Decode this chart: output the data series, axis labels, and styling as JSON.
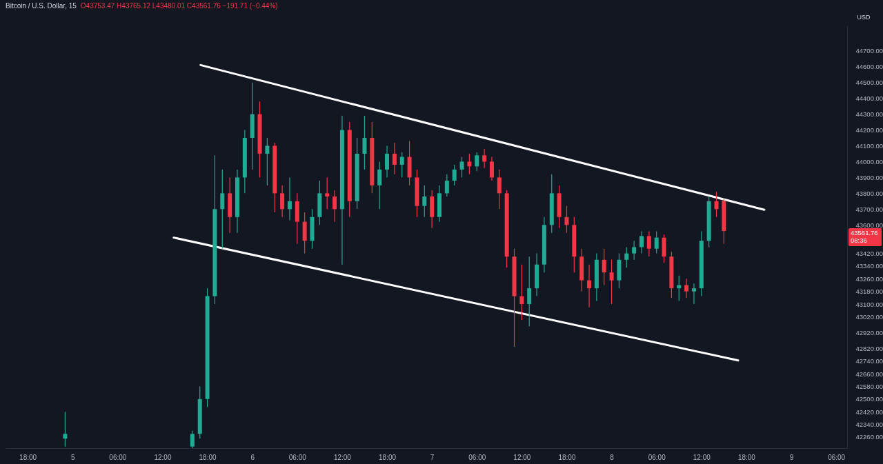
{
  "chart_data": {
    "type": "candlestick",
    "title": "Bitcoin / U.S. Dollar, 15",
    "subtitle": "O43753.47 H43765.12 L43480.01 C43561.76 −191.71 (−0.44%)",
    "ylabel": "USD",
    "annotations": [
      "43561.76",
      "08:36"
    ],
    "xlim": [
      "--12-04T15:30",
      "--12-09T07:00"
    ],
    "xticks": [
      {
        "value": "--12-04T18:00",
        "label": "18:00"
      },
      {
        "value": "--12-05T00:00",
        "label": "5"
      },
      {
        "value": "--12-05T06:00",
        "label": "06:00"
      },
      {
        "value": "--12-05T12:00",
        "label": "12:00"
      },
      {
        "value": "--12-05T18:00",
        "label": "18:00"
      },
      {
        "value": "--12-06T00:00",
        "label": "6"
      },
      {
        "value": "--12-06T06:00",
        "label": "06:00"
      },
      {
        "value": "--12-06T12:00",
        "label": "12:00"
      },
      {
        "value": "--12-06T18:00",
        "label": "18:00"
      },
      {
        "value": "--12-07T00:00",
        "label": "7"
      },
      {
        "value": "--12-07T06:00",
        "label": "06:00"
      },
      {
        "value": "--12-07T12:00",
        "label": "12:00"
      },
      {
        "value": "--12-07T18:00",
        "label": "18:00"
      },
      {
        "value": "--12-08T00:00",
        "label": "8"
      },
      {
        "value": "--12-08T06:00",
        "label": "06:00"
      },
      {
        "value": "--12-08T12:00",
        "label": "12:00"
      },
      {
        "value": "--12-08T18:00",
        "label": "18:00"
      },
      {
        "value": "--12-09T00:00",
        "label": "9"
      },
      {
        "value": "--12-09T06:00",
        "label": "06:00"
      }
    ],
    "ylim": [
      42190,
      44860
    ],
    "yticks": [
      {
        "value": 44700,
        "label": "44700.00"
      },
      {
        "value": 44600,
        "label": "44600.00"
      },
      {
        "value": 44500,
        "label": "44500.00"
      },
      {
        "value": 44400,
        "label": "44400.00"
      },
      {
        "value": 44300,
        "label": "44300.00"
      },
      {
        "value": 44200,
        "label": "44200.00"
      },
      {
        "value": 44100,
        "label": "44100.00"
      },
      {
        "value": 44000,
        "label": "44000.00"
      },
      {
        "value": 43900,
        "label": "43900.00"
      },
      {
        "value": 43800,
        "label": "43800.00"
      },
      {
        "value": 43700,
        "label": "43700.00"
      },
      {
        "value": 43600,
        "label": "43600.00"
      },
      {
        "value": 43420,
        "label": "43420.00"
      },
      {
        "value": 43340,
        "label": "43340.00"
      },
      {
        "value": 43260,
        "label": "43260.00"
      },
      {
        "value": 43180,
        "label": "43180.00"
      },
      {
        "value": 43100,
        "label": "43100.00"
      },
      {
        "value": 43020,
        "label": "43020.00"
      },
      {
        "value": 42920,
        "label": "42920.00"
      },
      {
        "value": 42820,
        "label": "42820.00"
      },
      {
        "value": 42740,
        "label": "42740.00"
      },
      {
        "value": 42660,
        "label": "42660.00"
      },
      {
        "value": 42580,
        "label": "42580.00"
      },
      {
        "value": 42500,
        "label": "42500.00"
      },
      {
        "value": 42420,
        "label": "42420.00"
      },
      {
        "value": 42340,
        "label": "42340.00"
      },
      {
        "value": 42260,
        "label": "42260.00"
      }
    ],
    "x": [
      "--12-04T23:00",
      "--12-05T16:00",
      "--12-05T17:00",
      "--12-05T18:00",
      "--12-05T19:00",
      "--12-05T20:00",
      "--12-05T21:00",
      "--12-05T22:00",
      "--12-05T23:00",
      "--12-06T00:00",
      "--12-06T01:00",
      "--12-06T02:00",
      "--12-06T03:00",
      "--12-06T04:00",
      "--12-06T05:00",
      "--12-06T06:00",
      "--12-06T07:00",
      "--12-06T08:00",
      "--12-06T09:00",
      "--12-06T10:00",
      "--12-06T11:00",
      "--12-06T12:00",
      "--12-06T13:00",
      "--12-06T14:00",
      "--12-06T15:00",
      "--12-06T16:00",
      "--12-06T17:00",
      "--12-06T18:00",
      "--12-06T19:00",
      "--12-06T20:00",
      "--12-06T21:00",
      "--12-06T22:00",
      "--12-06T23:00",
      "--12-07T00:00",
      "--12-07T01:00",
      "--12-07T02:00",
      "--12-07T03:00",
      "--12-07T04:00",
      "--12-07T05:00",
      "--12-07T06:00",
      "--12-07T07:00",
      "--12-07T08:00",
      "--12-07T09:00",
      "--12-07T10:00",
      "--12-07T11:00",
      "--12-07T12:00",
      "--12-07T13:00",
      "--12-07T14:00",
      "--12-07T15:00",
      "--12-07T16:00",
      "--12-07T17:00",
      "--12-07T18:00",
      "--12-07T19:00",
      "--12-07T20:00",
      "--12-07T21:00",
      "--12-07T22:00",
      "--12-07T23:00",
      "--12-08T00:00",
      "--12-08T01:00",
      "--12-08T02:00",
      "--12-08T03:00",
      "--12-08T04:00",
      "--12-08T05:00",
      "--12-08T06:00",
      "--12-08T07:00",
      "--12-08T08:00",
      "--12-08T09:00",
      "--12-08T10:00",
      "--12-08T11:00",
      "--12-08T12:00",
      "--12-08T13:00",
      "--12-08T14:00",
      "--12-08T15:00"
    ],
    "ohlc": [
      [
        42250,
        42420,
        42200,
        42280
      ],
      [
        42200,
        42300,
        42190,
        42280
      ],
      [
        42280,
        42580,
        42250,
        42500
      ],
      [
        42500,
        43200,
        42450,
        43150
      ],
      [
        43150,
        44040,
        43100,
        43700
      ],
      [
        43700,
        43950,
        43450,
        43800
      ],
      [
        43800,
        43900,
        43550,
        43650
      ],
      [
        43650,
        43950,
        43550,
        43900
      ],
      [
        43900,
        44200,
        43800,
        44150
      ],
      [
        44150,
        44500,
        43950,
        44300
      ],
      [
        44300,
        44380,
        43900,
        44050
      ],
      [
        44050,
        44150,
        43850,
        44100
      ],
      [
        44100,
        44120,
        43680,
        43800
      ],
      [
        43800,
        43850,
        43650,
        43700
      ],
      [
        43700,
        43900,
        43630,
        43750
      ],
      [
        43750,
        43800,
        43480,
        43620
      ],
      [
        43620,
        43680,
        43420,
        43500
      ],
      [
        43500,
        43700,
        43450,
        43650
      ],
      [
        43650,
        43880,
        43600,
        43800
      ],
      [
        43800,
        43900,
        43700,
        43780
      ],
      [
        43780,
        43820,
        43620,
        43700
      ],
      [
        43700,
        44290,
        43350,
        44200
      ],
      [
        44200,
        44250,
        43650,
        43750
      ],
      [
        43750,
        44150,
        43700,
        44050
      ],
      [
        44050,
        44290,
        43950,
        44150
      ],
      [
        44150,
        44250,
        43800,
        43850
      ],
      [
        43850,
        44000,
        43700,
        43950
      ],
      [
        43950,
        44100,
        43900,
        44050
      ],
      [
        44050,
        44120,
        43920,
        43980
      ],
      [
        43980,
        44060,
        43900,
        44030
      ],
      [
        44030,
        44130,
        43850,
        43900
      ],
      [
        43900,
        43950,
        43650,
        43720
      ],
      [
        43720,
        43850,
        43650,
        43780
      ],
      [
        43780,
        43820,
        43580,
        43650
      ],
      [
        43650,
        43850,
        43620,
        43800
      ],
      [
        43800,
        43920,
        43780,
        43880
      ],
      [
        43880,
        43980,
        43850,
        43950
      ],
      [
        43950,
        44030,
        43900,
        44000
      ],
      [
        44000,
        44050,
        43920,
        43970
      ],
      [
        43970,
        44060,
        43940,
        44040
      ],
      [
        44040,
        44080,
        43960,
        44000
      ],
      [
        44000,
        44030,
        43880,
        43900
      ],
      [
        43900,
        43950,
        43700,
        43800
      ],
      [
        43800,
        43820,
        43330,
        43400
      ],
      [
        43400,
        43450,
        42830,
        43150
      ],
      [
        43150,
        43350,
        43000,
        43100
      ],
      [
        43100,
        43400,
        42960,
        43200
      ],
      [
        43200,
        43420,
        43150,
        43350
      ],
      [
        43350,
        43650,
        43300,
        43600
      ],
      [
        43600,
        43920,
        43550,
        43800
      ],
      [
        43800,
        43850,
        43580,
        43650
      ],
      [
        43650,
        43720,
        43550,
        43600
      ],
      [
        43600,
        43650,
        43300,
        43400
      ],
      [
        43400,
        43450,
        43180,
        43250
      ],
      [
        43250,
        43350,
        43080,
        43200
      ],
      [
        43200,
        43420,
        43120,
        43380
      ],
      [
        43380,
        43450,
        43220,
        43300
      ],
      [
        43300,
        43380,
        43100,
        43250
      ],
      [
        43250,
        43420,
        43200,
        43380
      ],
      [
        43380,
        43460,
        43330,
        43420
      ],
      [
        43420,
        43500,
        43380,
        43460
      ],
      [
        43460,
        43560,
        43420,
        43530
      ],
      [
        43530,
        43560,
        43400,
        43450
      ],
      [
        43450,
        43560,
        43420,
        43520
      ],
      [
        43520,
        43540,
        43360,
        43400
      ],
      [
        43400,
        43430,
        43140,
        43200
      ],
      [
        43200,
        43280,
        43120,
        43220
      ],
      [
        43220,
        43260,
        43140,
        43180
      ],
      [
        43180,
        43230,
        43100,
        43200
      ],
      [
        43200,
        43560,
        43150,
        43500
      ],
      [
        43500,
        43780,
        43460,
        43750
      ],
      [
        43750,
        43810,
        43650,
        43700
      ],
      [
        43753.47,
        43765.12,
        43480.01,
        43561.76
      ]
    ],
    "colors": [
      "#22ab94",
      "#22ab94",
      "#22ab94",
      "#22ab94",
      "#22ab94",
      "#22ab94",
      "#f23645",
      "#22ab94",
      "#22ab94",
      "#22ab94",
      "#f23645",
      "#22ab94",
      "#f23645",
      "#f23645",
      "#22ab94",
      "#f23645",
      "#f23645",
      "#22ab94",
      "#22ab94",
      "#f23645",
      "#f23645",
      "#22ab94",
      "#f23645",
      "#22ab94",
      "#22ab94",
      "#f23645",
      "#22ab94",
      "#22ab94",
      "#f23645",
      "#22ab94",
      "#f23645",
      "#f23645",
      "#22ab94",
      "#f23645",
      "#22ab94",
      "#22ab94",
      "#22ab94",
      "#22ab94",
      "#f23645",
      "#22ab94",
      "#f23645",
      "#f23645",
      "#f23645",
      "#f23645",
      "#f23645",
      "#f23645",
      "#22ab94",
      "#22ab94",
      "#22ab94",
      "#22ab94",
      "#f23645",
      "#f23645",
      "#f23645",
      "#f23645",
      "#f23645",
      "#22ab94",
      "#f23645",
      "#f23645",
      "#22ab94",
      "#22ab94",
      "#22ab94",
      "#22ab94",
      "#f23645",
      "#22ab94",
      "#f23645",
      "#f23645",
      "#22ab94",
      "#f23645",
      "#22ab94",
      "#22ab94",
      "#22ab94",
      "#f23645",
      "#f23645"
    ],
    "series": [
      {
        "type": "line",
        "color": "#ffffff",
        "x": [
          "--12-05T17:06",
          "--12-08T20:24"
        ],
        "values": [
          44610,
          43696
        ]
      },
      {
        "type": "line",
        "color": "#ffffff",
        "x": [
          "--12-05T13:30",
          "--12-08T16:54"
        ],
        "values": [
          43520,
          42744
        ]
      }
    ]
  }
}
